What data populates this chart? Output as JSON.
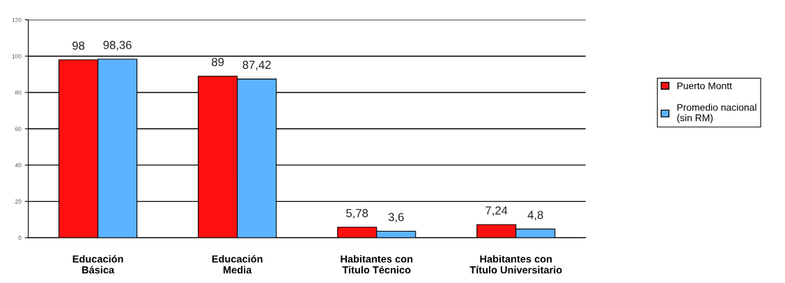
{
  "chart_data": {
    "type": "bar",
    "categories": [
      "Educación\nBásica",
      "Educación\nMedia",
      "Habitantes con\nTitulo Técnico",
      "Habitantes con\nTítulo Universitario"
    ],
    "series": [
      {
        "name": "Puerto Montt",
        "color": "#ff1010",
        "values": [
          98,
          89,
          5.78,
          7.24
        ],
        "value_labels": [
          "98",
          "89",
          "5,78",
          "7,24"
        ]
      },
      {
        "name": "Promedio nacional\n(sin RM)",
        "color": "#5cb3ff",
        "values": [
          98.36,
          87.42,
          3.6,
          4.8
        ],
        "value_labels": [
          "98,36",
          "87,42",
          "3,6",
          "4,8"
        ]
      }
    ],
    "ylim": [
      0,
      120
    ],
    "yticks": [
      0,
      20,
      40,
      60,
      80,
      100,
      120
    ],
    "grid": "y",
    "legend": "right"
  }
}
